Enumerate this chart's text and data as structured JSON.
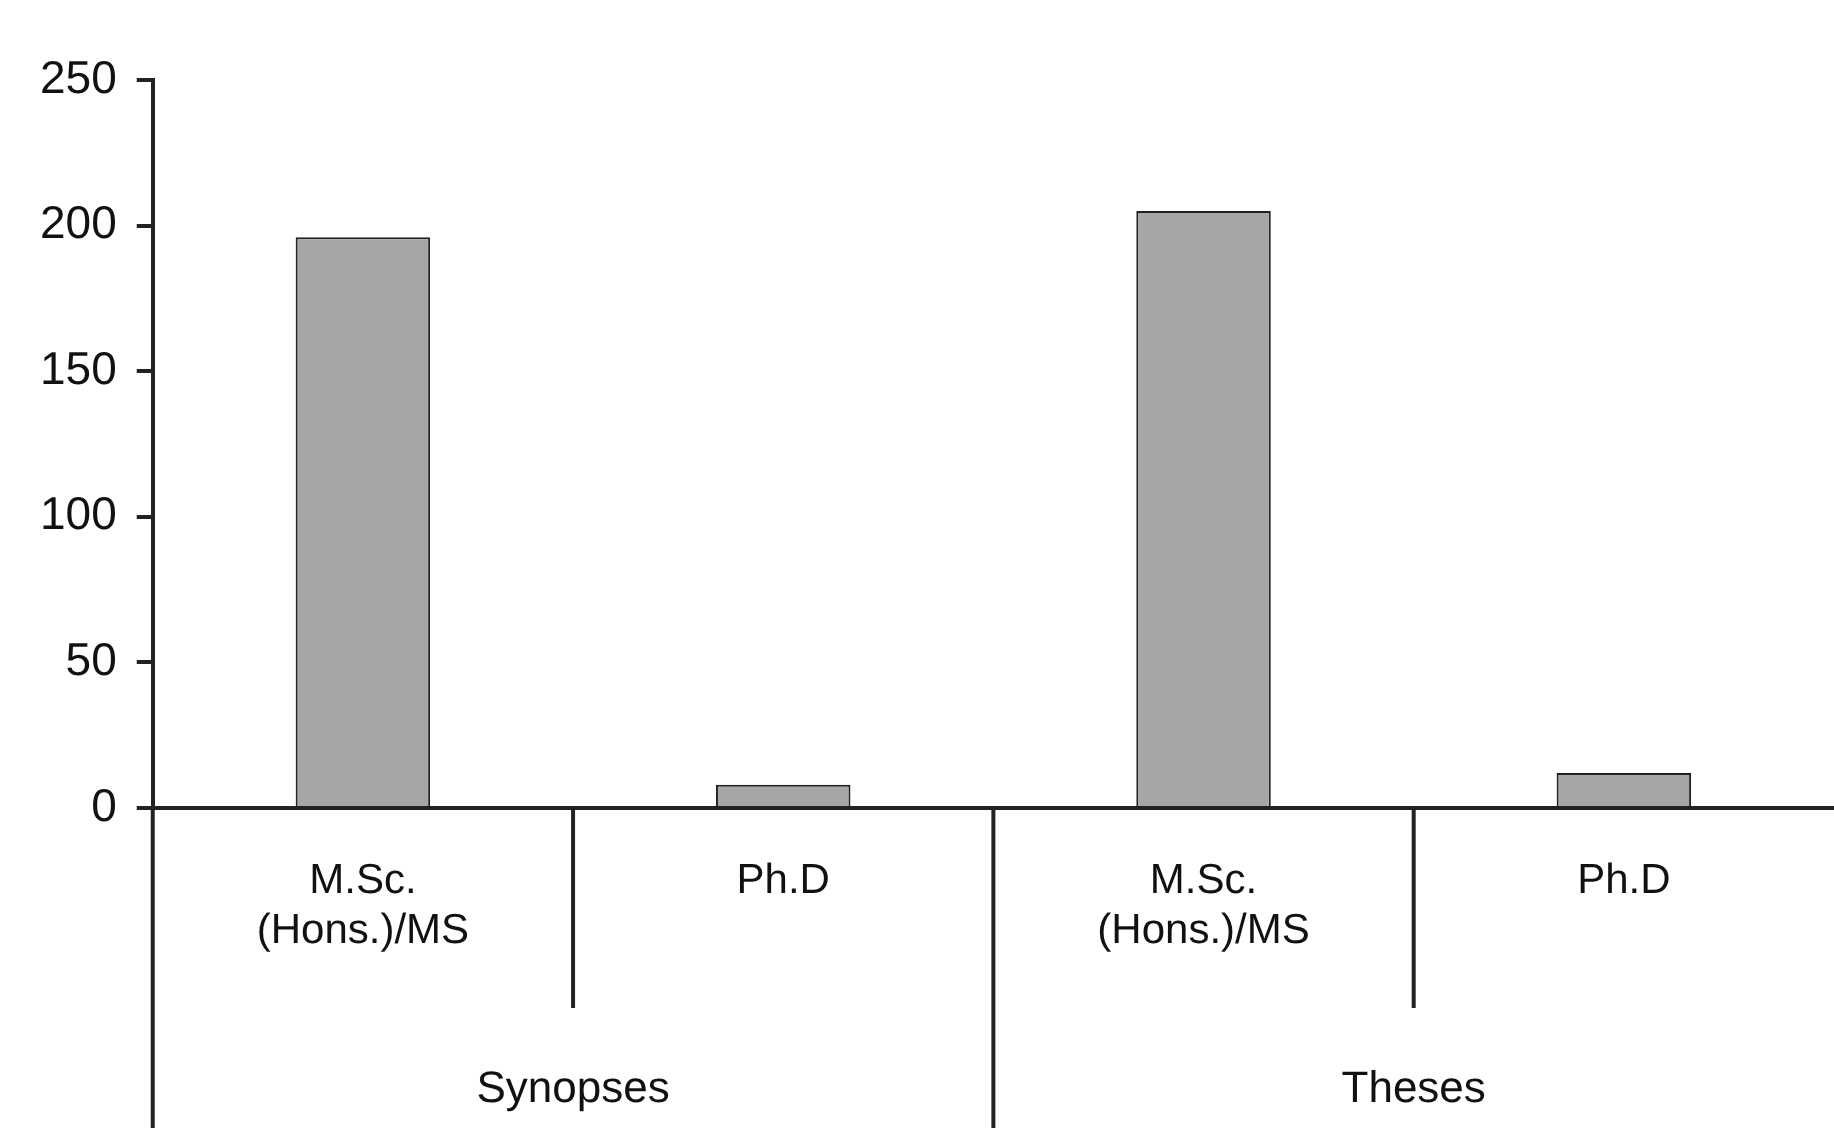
{
  "chart_data": {
    "type": "bar",
    "categories": [
      "M.Sc. (Hons.)/MS",
      "Ph.D",
      "M.Sc. (Hons.)/MS",
      "Ph.D"
    ],
    "values": [
      196,
      8,
      205,
      12
    ],
    "color": "#a6a6a6",
    "ylim": [
      0,
      250
    ],
    "yticks": [
      0,
      50,
      100,
      150,
      200,
      250
    ],
    "annotations": [
      "Synopses",
      "Theses"
    ],
    "grid": false,
    "legend": false
  }
}
